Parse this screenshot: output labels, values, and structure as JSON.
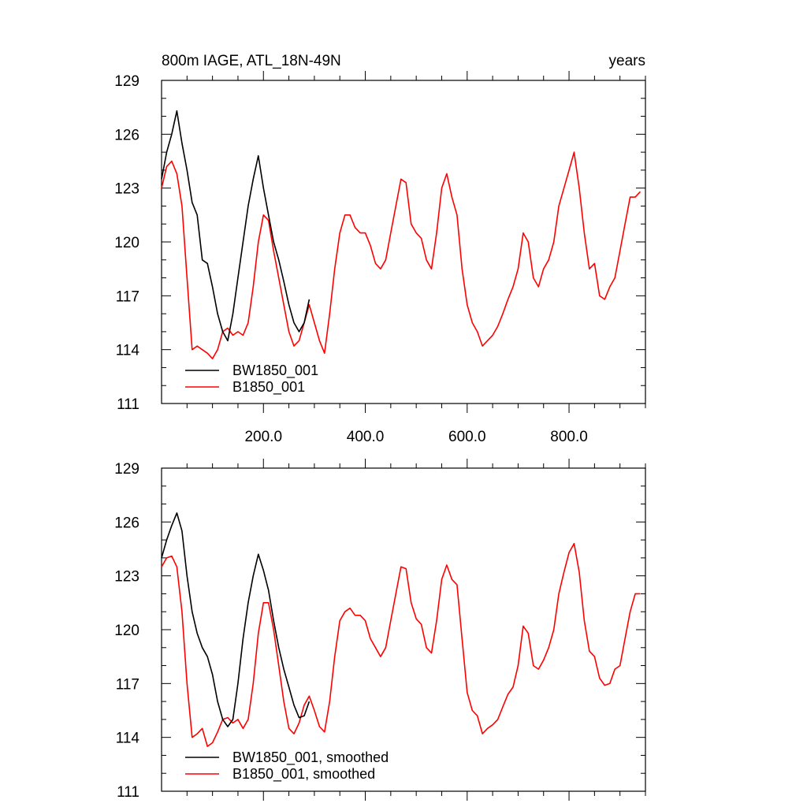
{
  "chart_data": [
    {
      "type": "line",
      "title": "800m IAGE, ATL_18N-49N",
      "title_right": "years",
      "xlim": [
        0,
        950
      ],
      "ylim": [
        111,
        129
      ],
      "yticks": [
        111,
        114,
        117,
        120,
        123,
        126,
        129
      ],
      "yticklabels": [
        "111",
        "114",
        "117",
        "120",
        "123",
        "126",
        "129"
      ],
      "xticks": [
        200,
        400,
        600,
        800
      ],
      "xticklabels": [
        "200.0",
        "400.0",
        "600.0",
        "800.0"
      ],
      "legend_position": "bottom-left",
      "series": [
        {
          "name": "BW1850_001",
          "color": "#000000",
          "x": [
            0,
            10,
            20,
            30,
            40,
            50,
            60,
            70,
            80,
            90,
            100,
            110,
            120,
            130,
            140,
            150,
            160,
            170,
            180,
            190,
            200,
            210,
            220,
            230,
            240,
            250,
            260,
            270,
            280,
            290
          ],
          "y": [
            123.5,
            125.0,
            126.0,
            127.3,
            125.5,
            124.0,
            122.2,
            121.5,
            119.0,
            118.8,
            117.5,
            116.0,
            115.0,
            114.5,
            116.0,
            118.0,
            120.0,
            122.0,
            123.5,
            124.8,
            123.0,
            121.5,
            120.0,
            119.0,
            117.8,
            116.5,
            115.5,
            115.0,
            115.5,
            116.8
          ]
        },
        {
          "name": "B1850_001",
          "color": "#ff0000",
          "x": [
            0,
            10,
            20,
            30,
            40,
            50,
            60,
            70,
            80,
            90,
            100,
            110,
            120,
            130,
            140,
            150,
            160,
            170,
            180,
            190,
            200,
            210,
            220,
            230,
            240,
            250,
            260,
            270,
            280,
            290,
            300,
            310,
            320,
            330,
            340,
            350,
            360,
            370,
            380,
            390,
            400,
            410,
            420,
            430,
            440,
            450,
            460,
            470,
            480,
            490,
            500,
            510,
            520,
            530,
            540,
            550,
            560,
            570,
            580,
            590,
            600,
            610,
            620,
            630,
            640,
            650,
            660,
            670,
            680,
            690,
            700,
            710,
            720,
            730,
            740,
            750,
            760,
            770,
            780,
            790,
            800,
            810,
            820,
            830,
            840,
            850,
            860,
            870,
            880,
            890,
            900,
            910,
            920,
            930,
            940
          ],
          "y": [
            123.0,
            124.2,
            124.5,
            123.8,
            122.0,
            118.0,
            114.0,
            114.2,
            114.0,
            113.8,
            113.5,
            114.0,
            115.0,
            115.2,
            114.8,
            115.0,
            114.8,
            115.5,
            117.5,
            120.0,
            121.5,
            121.2,
            119.5,
            118.0,
            116.5,
            115.0,
            114.2,
            114.5,
            115.5,
            116.5,
            115.5,
            114.5,
            113.8,
            116.0,
            118.5,
            120.5,
            121.5,
            121.5,
            120.8,
            120.5,
            120.5,
            119.8,
            118.8,
            118.5,
            119.0,
            120.5,
            122.0,
            123.5,
            123.3,
            121.0,
            120.5,
            120.2,
            119.0,
            118.5,
            120.5,
            123.0,
            123.8,
            122.5,
            121.5,
            118.5,
            116.5,
            115.5,
            115.0,
            114.2,
            114.5,
            114.8,
            115.3,
            116.0,
            116.8,
            117.5,
            118.5,
            120.5,
            120.0,
            118.0,
            117.5,
            118.5,
            119.0,
            120.0,
            122.0,
            123.0,
            124.0,
            125.0,
            123.0,
            120.5,
            118.5,
            118.8,
            117.0,
            116.8,
            117.5,
            118.0,
            119.5,
            121.0,
            122.5,
            122.5,
            122.8
          ]
        }
      ]
    },
    {
      "type": "line",
      "title": "",
      "xlim": [
        0,
        950
      ],
      "ylim": [
        111,
        129
      ],
      "yticks": [
        111,
        114,
        117,
        120,
        123,
        126,
        129
      ],
      "yticklabels": [
        "111",
        "114",
        "117",
        "120",
        "123",
        "126",
        "129"
      ],
      "xticks": [
        200,
        400,
        600,
        800
      ],
      "xticklabels": [],
      "legend_position": "bottom-left",
      "series": [
        {
          "name": "BW1850_001, smoothed",
          "color": "#000000",
          "x": [
            0,
            10,
            20,
            30,
            40,
            50,
            60,
            70,
            80,
            90,
            100,
            110,
            120,
            130,
            140,
            150,
            160,
            170,
            180,
            190,
            200,
            210,
            220,
            230,
            240,
            250,
            260,
            270,
            280,
            290
          ],
          "y": [
            124.0,
            125.0,
            125.8,
            126.5,
            125.5,
            123.0,
            121.0,
            119.8,
            119.0,
            118.5,
            117.5,
            116.0,
            115.0,
            114.6,
            115.0,
            117.0,
            119.5,
            121.5,
            123.0,
            124.2,
            123.3,
            122.2,
            120.5,
            119.0,
            117.8,
            116.8,
            115.8,
            115.1,
            115.2,
            116.0
          ]
        },
        {
          "name": "B1850_001, smoothed",
          "color": "#ff0000",
          "x": [
            0,
            10,
            20,
            30,
            40,
            50,
            60,
            70,
            80,
            90,
            100,
            110,
            120,
            130,
            140,
            150,
            160,
            170,
            180,
            190,
            200,
            210,
            220,
            230,
            240,
            250,
            260,
            270,
            280,
            290,
            300,
            310,
            320,
            330,
            340,
            350,
            360,
            370,
            380,
            390,
            400,
            410,
            420,
            430,
            440,
            450,
            460,
            470,
            480,
            490,
            500,
            510,
            520,
            530,
            540,
            550,
            560,
            570,
            580,
            590,
            600,
            610,
            620,
            630,
            640,
            650,
            660,
            670,
            680,
            690,
            700,
            710,
            720,
            730,
            740,
            750,
            760,
            770,
            780,
            790,
            800,
            810,
            820,
            830,
            840,
            850,
            860,
            870,
            880,
            890,
            900,
            910,
            920,
            930,
            940
          ],
          "y": [
            123.5,
            124.0,
            124.1,
            123.5,
            121.0,
            117.0,
            114.0,
            114.2,
            114.5,
            113.5,
            113.7,
            114.3,
            115.0,
            115.1,
            114.8,
            115.0,
            114.5,
            115.0,
            117.0,
            119.8,
            121.5,
            121.5,
            120.0,
            118.0,
            116.0,
            114.5,
            114.2,
            114.8,
            115.8,
            116.3,
            115.5,
            114.6,
            114.3,
            116.0,
            118.5,
            120.5,
            121.0,
            121.2,
            120.8,
            120.8,
            120.5,
            119.5,
            119.0,
            118.5,
            119.0,
            120.5,
            122.0,
            123.5,
            123.4,
            121.5,
            120.6,
            120.3,
            119.0,
            118.7,
            120.5,
            122.8,
            123.6,
            122.8,
            122.5,
            119.5,
            116.5,
            115.5,
            115.2,
            114.2,
            114.5,
            114.7,
            115.0,
            115.7,
            116.4,
            116.8,
            118.0,
            120.2,
            119.8,
            118.0,
            117.8,
            118.3,
            119.0,
            120.0,
            122.0,
            123.2,
            124.3,
            124.8,
            123.2,
            120.5,
            118.8,
            118.5,
            117.3,
            116.9,
            117.0,
            117.8,
            118.0,
            119.5,
            121.0,
            122.0,
            122.0
          ]
        }
      ]
    }
  ]
}
